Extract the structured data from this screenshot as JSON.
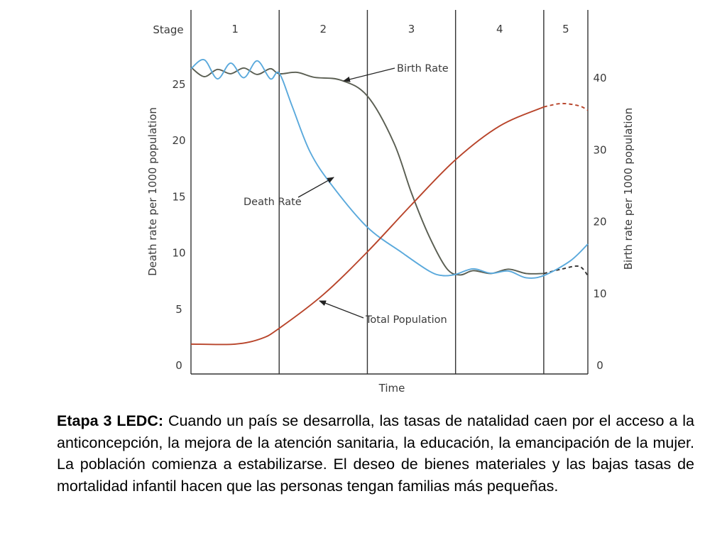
{
  "chart_data": {
    "type": "line",
    "stage_label": "Stage",
    "stages": [
      "1",
      "2",
      "3",
      "4",
      "5"
    ],
    "xlabel": "Time",
    "ylabel_left": "Death rate per 1000 population",
    "ylabel_right": "Birth rate per 1000 population",
    "left_axis": {
      "ticks": [
        0,
        5,
        10,
        15,
        20,
        25
      ],
      "ylim": [
        0,
        25
      ]
    },
    "right_axis": {
      "ticks": [
        0,
        10,
        20,
        30,
        40
      ],
      "ylim": [
        0,
        40
      ]
    },
    "x_range": [
      0,
      4.5
    ],
    "stage_boundaries": [
      1,
      2,
      3,
      4
    ],
    "series": [
      {
        "name": "Birth Rate",
        "axis": "right",
        "color": "#5a5e52",
        "solid": [
          [
            0,
            41.5
          ],
          [
            0.15,
            40.2
          ],
          [
            0.3,
            41.2
          ],
          [
            0.45,
            40.6
          ],
          [
            0.6,
            41.4
          ],
          [
            0.75,
            40.5
          ],
          [
            0.9,
            41.3
          ],
          [
            1.0,
            40.6
          ],
          [
            1.2,
            40.8
          ],
          [
            1.4,
            40.1
          ],
          [
            1.7,
            39.7
          ],
          [
            2.0,
            37.5
          ],
          [
            2.3,
            31
          ],
          [
            2.5,
            24
          ],
          [
            2.7,
            18
          ],
          [
            2.9,
            13.5
          ],
          [
            3.05,
            12.6
          ],
          [
            3.2,
            13.2
          ],
          [
            3.4,
            12.8
          ],
          [
            3.6,
            13.4
          ],
          [
            3.8,
            12.8
          ],
          [
            4.0,
            12.8
          ]
        ],
        "dashed": [
          [
            4.0,
            12.8
          ],
          [
            4.2,
            13.4
          ],
          [
            4.4,
            13.8
          ],
          [
            4.5,
            12.5
          ]
        ]
      },
      {
        "name": "Death Rate",
        "axis": "left",
        "color": "#5aa9dc",
        "solid": [
          [
            0,
            26.4
          ],
          [
            0.15,
            27.2
          ],
          [
            0.3,
            25.5
          ],
          [
            0.45,
            26.9
          ],
          [
            0.6,
            25.6
          ],
          [
            0.75,
            27.1
          ],
          [
            0.9,
            25.5
          ],
          [
            1.0,
            26.0
          ],
          [
            1.15,
            23
          ],
          [
            1.35,
            19
          ],
          [
            1.6,
            16
          ],
          [
            2.0,
            12.3
          ],
          [
            2.4,
            10.0
          ],
          [
            2.7,
            8.4
          ],
          [
            2.85,
            8.0
          ],
          [
            3.0,
            8.1
          ],
          [
            3.2,
            8.6
          ],
          [
            3.4,
            8.2
          ],
          [
            3.6,
            8.4
          ],
          [
            3.8,
            7.8
          ],
          [
            4.0,
            8.0
          ],
          [
            4.3,
            9.3
          ],
          [
            4.5,
            10.8
          ]
        ],
        "dashed": []
      },
      {
        "name": "Total Population",
        "axis": "left",
        "color": "#b8442a",
        "solid": [
          [
            0,
            1.9
          ],
          [
            0.5,
            1.9
          ],
          [
            0.8,
            2.4
          ],
          [
            1.0,
            3.3
          ],
          [
            1.5,
            6.3
          ],
          [
            2.0,
            10.1
          ],
          [
            2.5,
            14.3
          ],
          [
            3.0,
            18.3
          ],
          [
            3.5,
            21.3
          ],
          [
            4.0,
            23.0
          ]
        ],
        "dashed": [
          [
            4.0,
            23.0
          ],
          [
            4.2,
            23.3
          ],
          [
            4.4,
            23.1
          ],
          [
            4.5,
            22.7
          ]
        ]
      }
    ],
    "annotations": [
      "Birth Rate",
      "Death Rate",
      "Total Population"
    ]
  },
  "caption": {
    "bold": "Etapa 3 LEDC:",
    "text": " Cuando un país se desarrolla, las tasas de natalidad caen por el acceso a la anticoncepción, la mejora de la atención sanitaria, la educación, la emancipación de la mujer. La población comienza a estabilizarse. El deseo de bienes materiales y las bajas tasas de mortalidad infantil hacen que las personas tengan familias más pequeñas."
  }
}
